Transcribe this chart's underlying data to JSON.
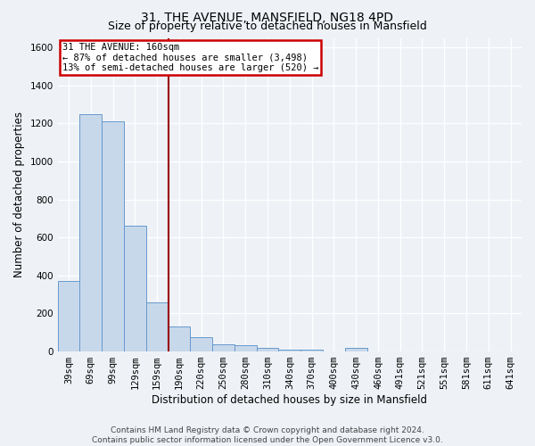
{
  "title": "31, THE AVENUE, MANSFIELD, NG18 4PD",
  "subtitle": "Size of property relative to detached houses in Mansfield",
  "xlabel": "Distribution of detached houses by size in Mansfield",
  "ylabel": "Number of detached properties",
  "categories": [
    "39sqm",
    "69sqm",
    "99sqm",
    "129sqm",
    "159sqm",
    "190sqm",
    "220sqm",
    "250sqm",
    "280sqm",
    "310sqm",
    "340sqm",
    "370sqm",
    "400sqm",
    "430sqm",
    "460sqm",
    "491sqm",
    "521sqm",
    "551sqm",
    "581sqm",
    "611sqm",
    "641sqm"
  ],
  "bar_heights": [
    370,
    1250,
    1210,
    660,
    260,
    130,
    75,
    40,
    35,
    20,
    10,
    10,
    0,
    20,
    0,
    0,
    0,
    0,
    0,
    0,
    0
  ],
  "bar_color": "#c8d8eb",
  "bar_edge_color": "#6699cc",
  "property_line_color": "#990000",
  "annotation_text": "31 THE AVENUE: 160sqm\n← 87% of detached houses are smaller (3,498)\n13% of semi-detached houses are larger (520) →",
  "annotation_box_color": "#cc0000",
  "ylim": [
    0,
    1650
  ],
  "yticks": [
    0,
    200,
    400,
    600,
    800,
    1000,
    1200,
    1400,
    1600
  ],
  "footer_line1": "Contains HM Land Registry data © Crown copyright and database right 2024.",
  "footer_line2": "Contains public sector information licensed under the Open Government Licence v3.0.",
  "bg_color": "#eef2f7",
  "grid_color": "#ffffff",
  "title_fontsize": 10,
  "subtitle_fontsize": 9,
  "axis_label_fontsize": 8.5,
  "tick_fontsize": 7.5,
  "annotation_fontsize": 7.5,
  "footer_fontsize": 6.5
}
